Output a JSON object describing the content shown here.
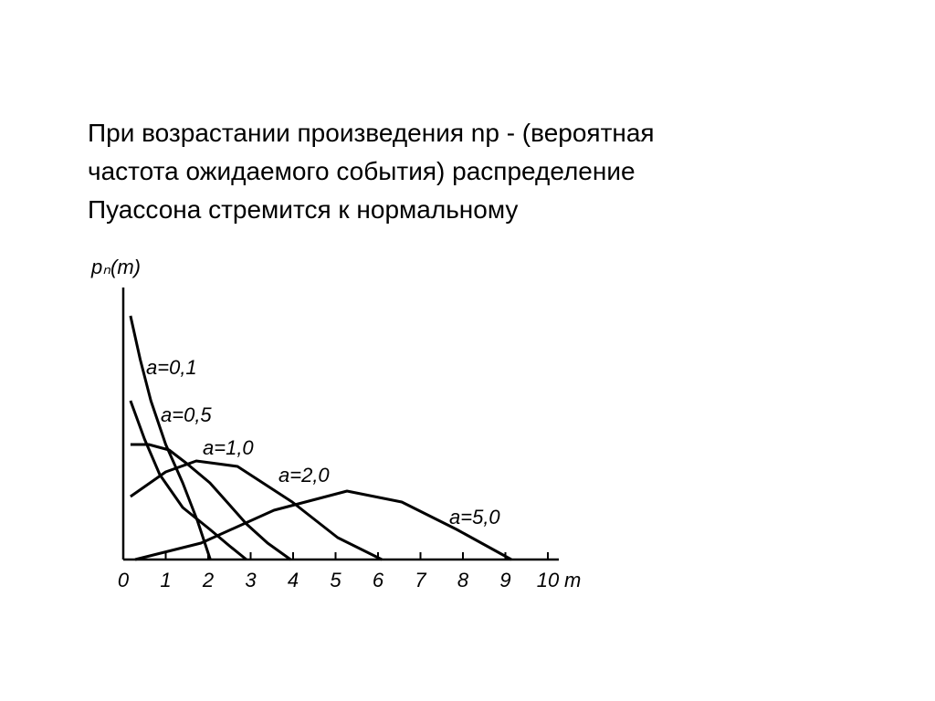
{
  "text": [
    "При возрастании произведения np -  (вероятная",
    "частота ожидаемого события) распределение",
    "Пуассона стремится к нормальному"
  ],
  "chart_data": {
    "type": "line",
    "y_label": "pₙ(m)",
    "x_label": "m",
    "xlim": [
      0,
      10
    ],
    "xticks": [
      0,
      1,
      2,
      3,
      4,
      5,
      6,
      7,
      8,
      9,
      10
    ],
    "ylim": [
      0,
      1
    ],
    "color": "#000000",
    "series": [
      {
        "name": "a=0,1",
        "x": [
          0.17,
          0.4,
          0.65,
          1.0,
          1.4,
          1.75,
          2.05
        ],
        "values": [
          0.89,
          0.73,
          0.58,
          0.42,
          0.28,
          0.14,
          0.0
        ]
      },
      {
        "name": "a=0,5",
        "x": [
          0.17,
          0.5,
          0.86,
          1.4,
          2.04,
          2.5,
          2.9
        ],
        "values": [
          0.58,
          0.44,
          0.31,
          0.19,
          0.11,
          0.05,
          0.0
        ]
      },
      {
        "name": "a=1,0",
        "x": [
          0.17,
          0.6,
          1.08,
          1.5,
          2.04,
          2.5,
          2.9,
          3.4,
          3.94
        ],
        "values": [
          0.42,
          0.42,
          0.4,
          0.35,
          0.28,
          0.2,
          0.13,
          0.06,
          0.0
        ]
      },
      {
        "name": "a=2,0",
        "x": [
          0.17,
          1.0,
          1.72,
          2.69,
          3.98,
          5.05,
          6.09
        ],
        "values": [
          0.23,
          0.32,
          0.36,
          0.34,
          0.21,
          0.08,
          0.0
        ]
      },
      {
        "name": "a=5,0",
        "x": [
          0.28,
          1.83,
          3.55,
          5.27,
          6.56,
          7.85,
          9.14
        ],
        "values": [
          0.0,
          0.06,
          0.18,
          0.25,
          0.21,
          0.11,
          0.0
        ]
      }
    ]
  }
}
